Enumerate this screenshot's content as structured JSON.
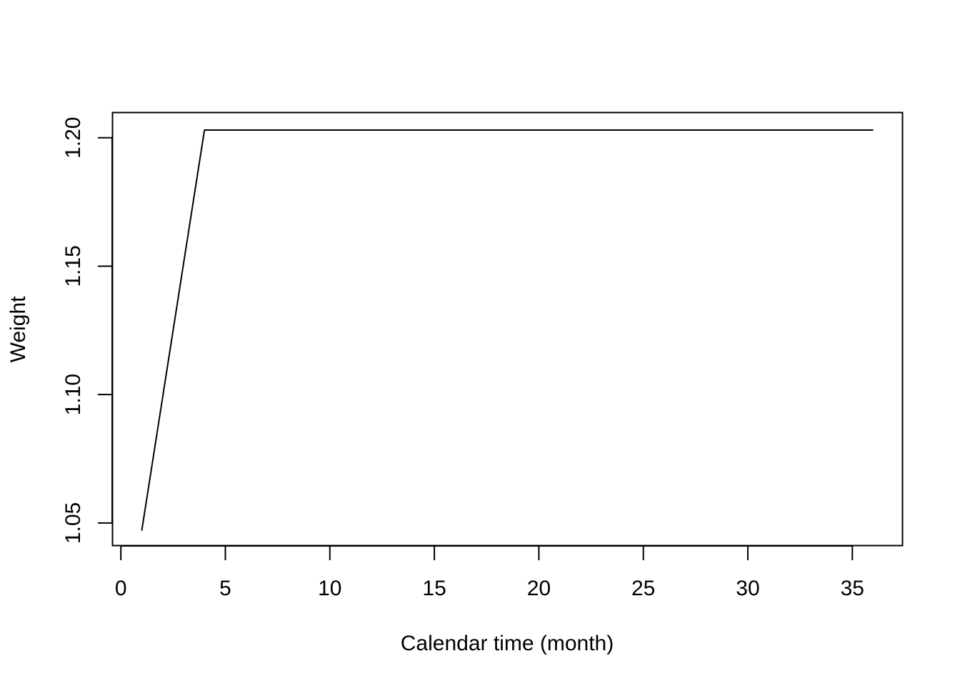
{
  "chart_data": {
    "type": "line",
    "title": "",
    "xlabel": "Calendar time (month)",
    "ylabel": "Weight",
    "xlim": [
      -0.4,
      37.4
    ],
    "ylim": [
      1.0412,
      1.2098
    ],
    "x_ticks": [
      0,
      5,
      10,
      15,
      20,
      25,
      30,
      35
    ],
    "x_tick_labels": [
      "0",
      "5",
      "10",
      "15",
      "20",
      "25",
      "30",
      "35"
    ],
    "y_ticks": [
      1.05,
      1.1,
      1.15,
      1.2
    ],
    "y_tick_labels": [
      "1.05",
      "1.10",
      "1.15",
      "1.20"
    ],
    "grid": false,
    "legend": "none",
    "line_color": "#000000",
    "series": [
      {
        "x": [
          1,
          2,
          3,
          4,
          5,
          6,
          7,
          8,
          9,
          10,
          11,
          12,
          13,
          14,
          15,
          16,
          17,
          18,
          19,
          20,
          21,
          22,
          23,
          24,
          25,
          26,
          27,
          28,
          29,
          30,
          31,
          32,
          33,
          34,
          35,
          36
        ],
        "values": [
          1.047,
          1.099,
          1.151,
          1.203,
          1.203,
          1.203,
          1.203,
          1.203,
          1.203,
          1.203,
          1.203,
          1.203,
          1.203,
          1.203,
          1.203,
          1.203,
          1.203,
          1.203,
          1.203,
          1.203,
          1.203,
          1.203,
          1.203,
          1.203,
          1.203,
          1.203,
          1.203,
          1.203,
          1.203,
          1.203,
          1.203,
          1.203,
          1.203,
          1.203,
          1.203,
          1.203
        ]
      }
    ]
  }
}
